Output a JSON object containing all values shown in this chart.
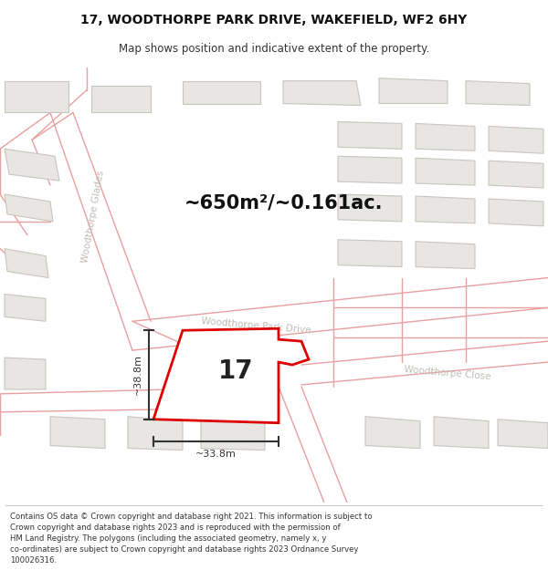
{
  "title_line1": "17, WOODTHORPE PARK DRIVE, WAKEFIELD, WF2 6HY",
  "title_line2": "Map shows position and indicative extent of the property.",
  "area_label": "~650m²/~0.161ac.",
  "property_number": "17",
  "dim_height": "~38.8m",
  "dim_width": "~33.8m",
  "footer_text_lines": [
    "Contains OS data © Crown copyright and database right 2021. This information is subject to",
    "Crown copyright and database rights 2023 and is reproduced with the permission of",
    "HM Land Registry. The polygons (including the associated geometry, namely x, y",
    "co-ordinates) are subject to Crown copyright and database rights 2023 Ordnance Survey",
    "100026316."
  ],
  "map_bg": "#f7f6f4",
  "building_fill": "#e8e6e3",
  "building_stroke": "#c8c4be",
  "pink_road": "#e8a0a0",
  "highlight_fill": "#ffffff",
  "highlight_stroke": "#dd0000",
  "dim_color": "#333333",
  "street_label_color": "#c0bcb8"
}
